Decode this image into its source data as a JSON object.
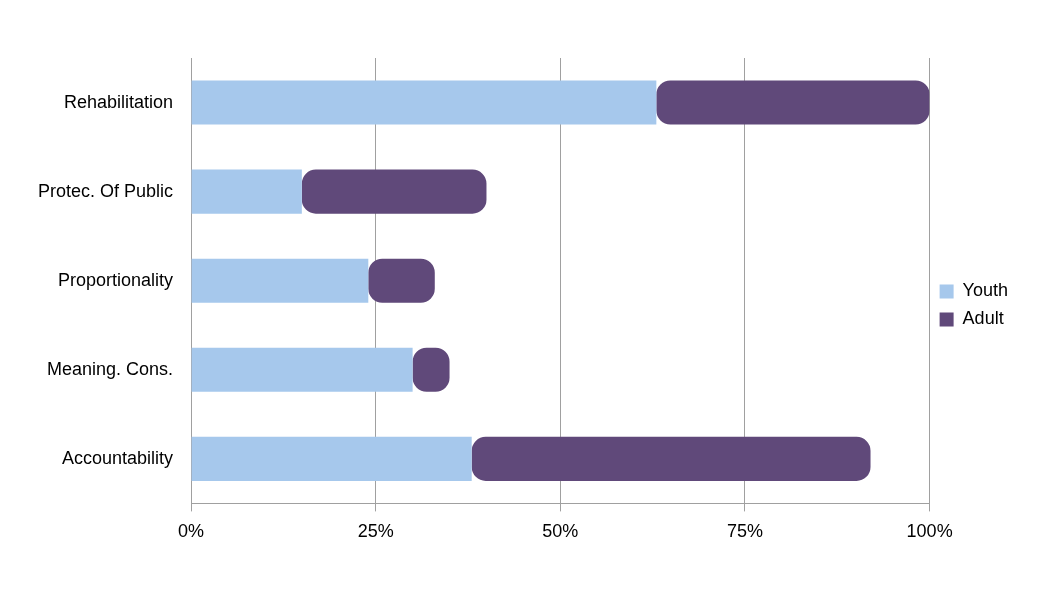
{
  "chart_data": {
    "type": "bar",
    "orientation": "horizontal",
    "stacked": true,
    "categories": [
      "Rehabilitation",
      "Protec. Of Public",
      "Proportionality",
      "Meaning. Cons.",
      "Accountability"
    ],
    "series": [
      {
        "name": "Youth",
        "color": "#a6c8ec",
        "values": [
          63,
          15,
          24,
          30,
          38
        ]
      },
      {
        "name": "Adult",
        "color": "#60497a",
        "values": [
          37,
          25,
          9,
          5,
          54
        ]
      }
    ],
    "xlim": [
      0,
      100
    ],
    "xticks": [
      {
        "value": 0,
        "label": "0%"
      },
      {
        "value": 25,
        "label": "25%"
      },
      {
        "value": 50,
        "label": "50%"
      },
      {
        "value": 75,
        "label": "75%"
      },
      {
        "value": 100,
        "label": "100%"
      }
    ],
    "grid": "x",
    "legend": "right"
  }
}
